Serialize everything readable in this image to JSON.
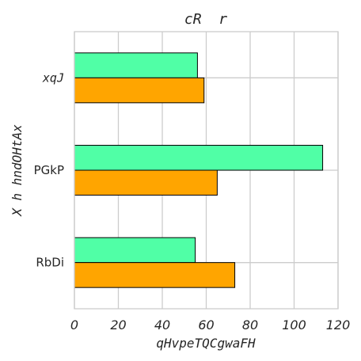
{
  "chart_data": {
    "type": "bar",
    "orientation": "horizontal",
    "title": "cR  r",
    "xlabel": "qHvpeTQCgwaFH",
    "ylabel": "X h hndOHtAx",
    "categories": [
      "xqJ",
      "PGkP",
      "RbDi"
    ],
    "series": [
      {
        "color": "#50FFA6",
        "values": [
          56,
          113,
          55
        ]
      },
      {
        "color": "#FFA500",
        "values": [
          59,
          65,
          73
        ]
      }
    ],
    "xlim": [
      0,
      120
    ],
    "xticks": [
      "0",
      "20",
      "40",
      "60",
      "80",
      "100",
      "120"
    ],
    "grid": true
  }
}
